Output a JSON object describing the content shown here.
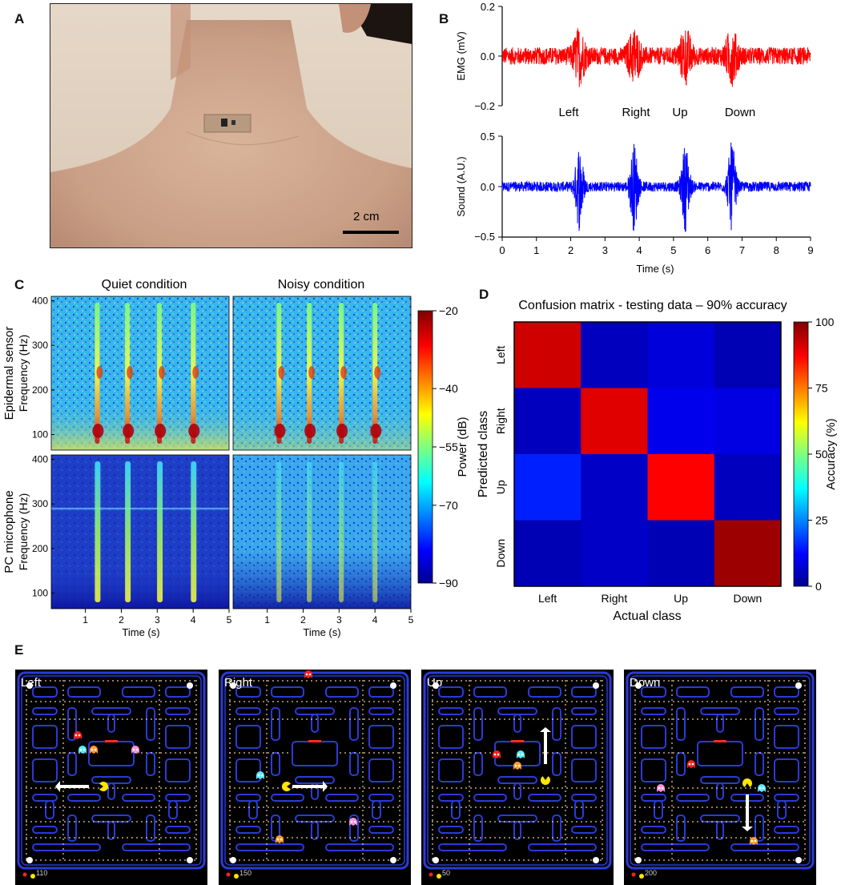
{
  "panels": {
    "a": "A",
    "b": "B",
    "c": "C",
    "d": "D",
    "e": "E"
  },
  "panel_a": {
    "scale_bar_label": "2 cm"
  },
  "panel_b": {
    "emg_ylabel": "EMG (mV)",
    "emg_ticks": [
      "0.2",
      "0.0",
      "−0.2"
    ],
    "sound_ylabel": "Sound (A.U.)",
    "sound_ticks": [
      "0.5",
      "0.0",
      "−0.5"
    ],
    "xlabel": "Time (s)",
    "xticks": [
      "0",
      "1",
      "2",
      "3",
      "4",
      "5",
      "6",
      "7",
      "8",
      "9"
    ],
    "word_labels": [
      "Left",
      "Right",
      "Up",
      "Down"
    ],
    "emg_color": "#ff0000",
    "sound_color": "#0000ff"
  },
  "panel_c": {
    "col_titles": [
      "Quiet condition",
      "Noisy condition"
    ],
    "row_labels": [
      "Epidermal sensor",
      "PC microphone"
    ],
    "ylabel": "Frequency (Hz)",
    "yticks": [
      "400",
      "300",
      "200",
      "100"
    ],
    "xticks": [
      "1",
      "2",
      "3",
      "4",
      "5"
    ],
    "xlabel": "Time (s)",
    "colorbar_label": "Power (dB)",
    "colorbar_ticks": [
      "−20",
      "−40",
      "−55",
      "−70",
      "−90"
    ]
  },
  "chart_data": {
    "type": "heatmap",
    "title": "Confusion matrix - testing data – 90% accuracy",
    "xlabel": "Actual class",
    "ylabel": "Predicted class",
    "categories": [
      "Left",
      "Right",
      "Up",
      "Down"
    ],
    "values": [
      [
        92,
        5,
        8,
        4
      ],
      [
        5,
        90,
        10,
        9
      ],
      [
        15,
        6,
        87,
        5
      ],
      [
        4,
        6,
        4,
        97
      ]
    ],
    "colorbar_label": "Accuracy (%)",
    "colorbar_ticks": [
      "100",
      "75",
      "50",
      "25",
      "0"
    ],
    "zlim": [
      0,
      100
    ]
  },
  "panel_e": {
    "games": [
      {
        "label": "Left",
        "score": "110"
      },
      {
        "label": "Right",
        "score": "150"
      },
      {
        "label": "Up",
        "score": "50"
      },
      {
        "label": "Down",
        "score": "200"
      }
    ]
  }
}
